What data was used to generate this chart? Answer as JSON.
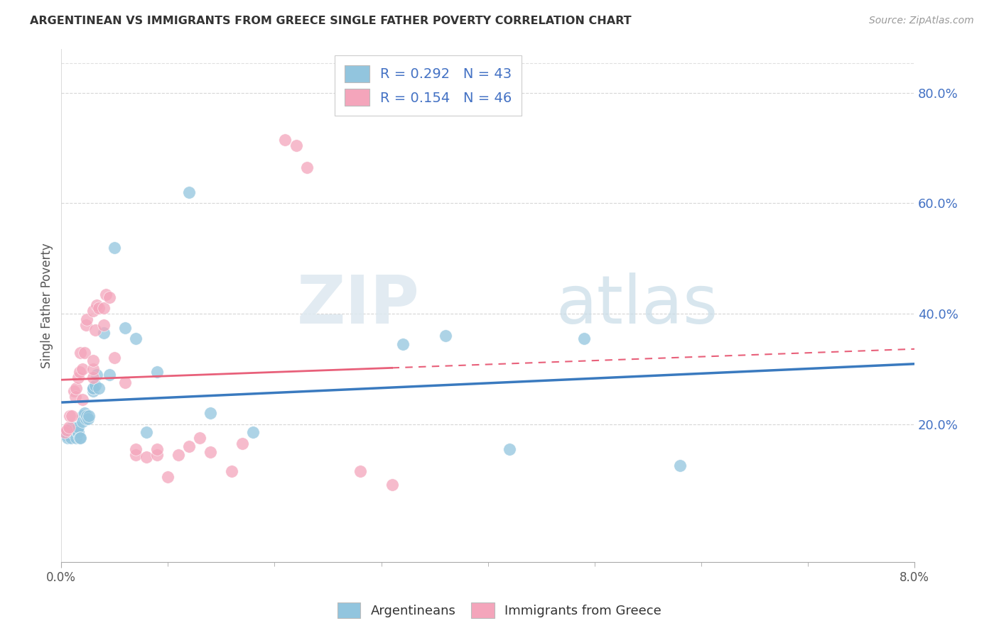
{
  "title": "ARGENTINEAN VS IMMIGRANTS FROM GREECE SINGLE FATHER POVERTY CORRELATION CHART",
  "source": "Source: ZipAtlas.com",
  "ylabel": "Single Father Poverty",
  "right_yticks": [
    "20.0%",
    "40.0%",
    "60.0%",
    "80.0%"
  ],
  "right_ytick_vals": [
    0.2,
    0.4,
    0.6,
    0.8
  ],
  "legend_label1": "Argentineans",
  "legend_label2": "Immigrants from Greece",
  "blue_color": "#92c5de",
  "pink_color": "#f4a5bb",
  "blue_line_color": "#3a7abf",
  "pink_line_color": "#e8607a",
  "watermark_zip": "ZIP",
  "watermark_atlas": "atlas",
  "blue_r": 0.292,
  "blue_n": 43,
  "pink_r": 0.154,
  "pink_n": 46,
  "blue_x": [
    0.0003,
    0.0005,
    0.0006,
    0.0008,
    0.0009,
    0.001,
    0.001,
    0.0012,
    0.0013,
    0.0014,
    0.0015,
    0.0016,
    0.0016,
    0.0017,
    0.0018,
    0.002,
    0.002,
    0.0022,
    0.0023,
    0.0024,
    0.0025,
    0.0026,
    0.003,
    0.003,
    0.003,
    0.0032,
    0.0033,
    0.0035,
    0.004,
    0.0045,
    0.005,
    0.006,
    0.007,
    0.008,
    0.009,
    0.012,
    0.014,
    0.018,
    0.032,
    0.036,
    0.042,
    0.049,
    0.058
  ],
  "blue_y": [
    0.185,
    0.18,
    0.175,
    0.19,
    0.175,
    0.185,
    0.195,
    0.19,
    0.185,
    0.175,
    0.185,
    0.185,
    0.195,
    0.175,
    0.175,
    0.215,
    0.205,
    0.22,
    0.21,
    0.215,
    0.21,
    0.215,
    0.26,
    0.265,
    0.265,
    0.27,
    0.29,
    0.265,
    0.365,
    0.29,
    0.52,
    0.375,
    0.355,
    0.185,
    0.295,
    0.62,
    0.22,
    0.185,
    0.345,
    0.36,
    0.155,
    0.355,
    0.125
  ],
  "pink_x": [
    0.0003,
    0.0005,
    0.0007,
    0.0008,
    0.001,
    0.0012,
    0.0013,
    0.0014,
    0.0016,
    0.0017,
    0.0018,
    0.002,
    0.002,
    0.0022,
    0.0023,
    0.0024,
    0.003,
    0.003,
    0.003,
    0.003,
    0.0032,
    0.0033,
    0.0035,
    0.004,
    0.004,
    0.0042,
    0.0045,
    0.005,
    0.006,
    0.007,
    0.007,
    0.008,
    0.009,
    0.009,
    0.01,
    0.011,
    0.012,
    0.013,
    0.014,
    0.016,
    0.017,
    0.021,
    0.022,
    0.023,
    0.028,
    0.031
  ],
  "pink_y": [
    0.185,
    0.19,
    0.195,
    0.215,
    0.215,
    0.26,
    0.25,
    0.265,
    0.285,
    0.295,
    0.33,
    0.3,
    0.245,
    0.33,
    0.38,
    0.39,
    0.285,
    0.3,
    0.315,
    0.405,
    0.37,
    0.415,
    0.41,
    0.38,
    0.41,
    0.435,
    0.43,
    0.32,
    0.275,
    0.145,
    0.155,
    0.14,
    0.145,
    0.155,
    0.105,
    0.145,
    0.16,
    0.175,
    0.15,
    0.115,
    0.165,
    0.715,
    0.705,
    0.665,
    0.115,
    0.09
  ],
  "xlim": [
    0.0,
    0.08
  ],
  "ylim": [
    -0.05,
    0.88
  ],
  "xticklabels": [
    "0.0%",
    "8.0%"
  ],
  "xtick_positions": [
    0.0,
    0.08
  ]
}
